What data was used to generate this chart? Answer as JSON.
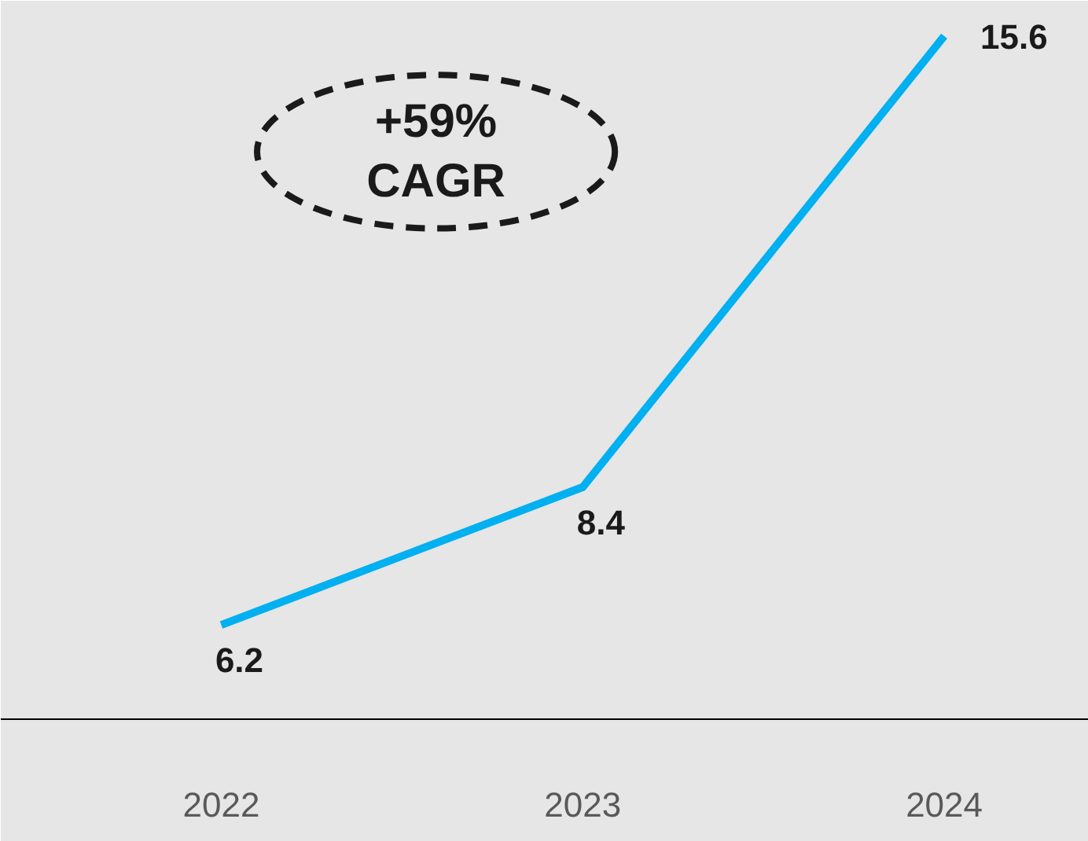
{
  "chart_data": {
    "type": "line",
    "categories": [
      "2022",
      "2023",
      "2024"
    ],
    "series": [
      {
        "color": "#00b0f0",
        "values": [
          6.2,
          8.4,
          15.6
        ]
      }
    ],
    "data_labels": true,
    "marker": "none",
    "line_style": "solid",
    "annotations": [
      "+59%\nCAGR"
    ]
  }
}
